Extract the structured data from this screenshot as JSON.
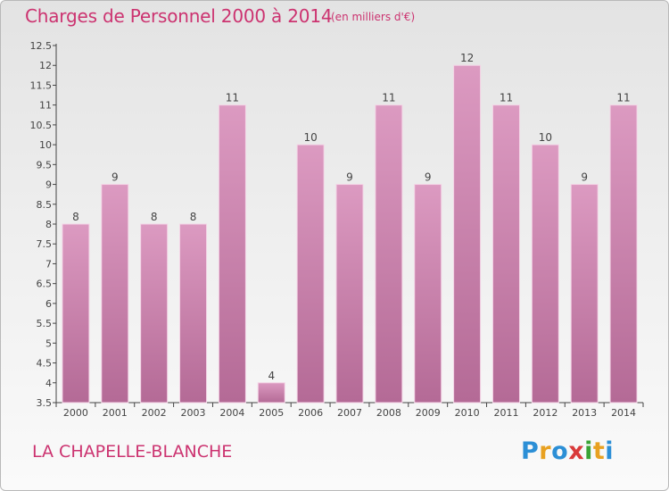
{
  "title": "Charges de Personnel 2000 à 2014",
  "subtitle": "(en milliers d'€)",
  "commune": "LA CHAPELLE-BLANCHE",
  "logo": {
    "text": "Proxiti",
    "colors": [
      "#2c8fd6",
      "#e8a121",
      "#2c8fd6",
      "#d93a3a",
      "#3aa335",
      "#e8a121"
    ]
  },
  "colors": {
    "bar": "#dc9ac1",
    "bar_dark": "#b46a96",
    "text": "#cc3370",
    "axis": "#444444"
  },
  "chart_data": {
    "type": "bar",
    "title": "Charges de Personnel 2000 à 2014",
    "subtitle": "(en milliers d'€)",
    "categories": [
      "2000",
      "2001",
      "2002",
      "2003",
      "2004",
      "2005",
      "2006",
      "2007",
      "2008",
      "2009",
      "2010",
      "2011",
      "2012",
      "2013",
      "2014"
    ],
    "values": [
      8,
      9,
      8,
      8,
      11,
      4,
      10,
      9,
      11,
      9,
      12,
      11,
      10,
      9,
      11
    ],
    "data_labels": [
      "8",
      "9",
      "8",
      "8",
      "11",
      "4",
      "10",
      "9",
      "11",
      "9",
      "12",
      "11",
      "10",
      "9",
      "11"
    ],
    "ylim": [
      3.5,
      12.5
    ],
    "yticks": [
      "3.5",
      "4",
      "4.5",
      "5",
      "5.5",
      "6",
      "6.5",
      "7",
      "7.5",
      "8",
      "8.5",
      "9",
      "9.5",
      "10",
      "10.5",
      "11",
      "11.5",
      "12",
      "12.5"
    ],
    "grid": false,
    "legend": "none"
  }
}
